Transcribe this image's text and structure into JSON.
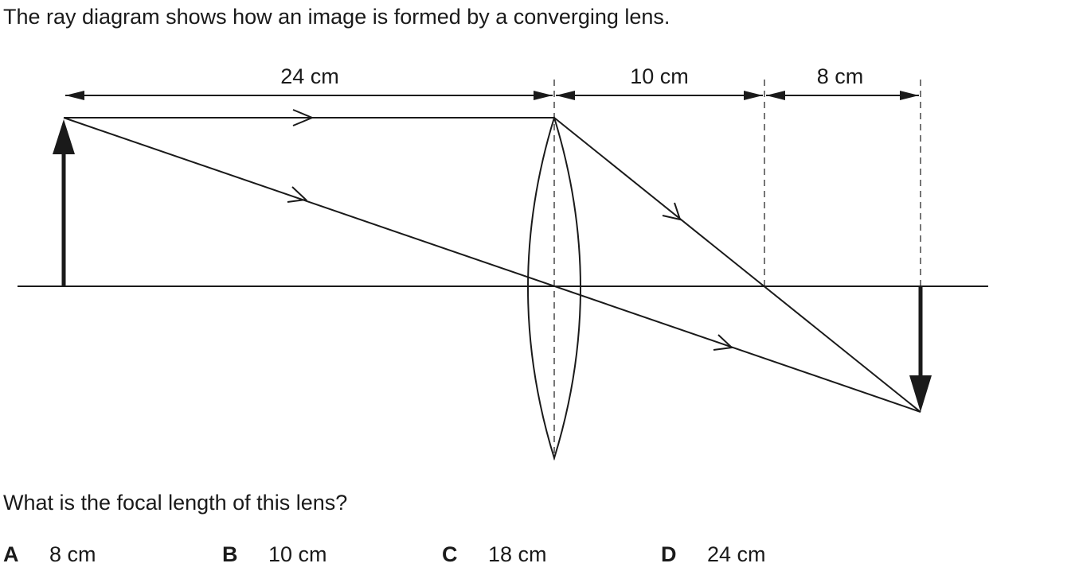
{
  "intro_text": "The ray diagram shows how an image is formed by a converging lens.",
  "diagram": {
    "labels": {
      "object_distance": "24 cm",
      "focal_distance": "10 cm",
      "extra_distance": "8 cm"
    },
    "colors": {
      "ink": "#1a1a1a"
    }
  },
  "question_text": "What is the focal length of this lens?",
  "options": [
    {
      "letter": "A",
      "value": "8 cm"
    },
    {
      "letter": "B",
      "value": "10 cm"
    },
    {
      "letter": "C",
      "value": "18 cm"
    },
    {
      "letter": "D",
      "value": "24 cm"
    }
  ]
}
